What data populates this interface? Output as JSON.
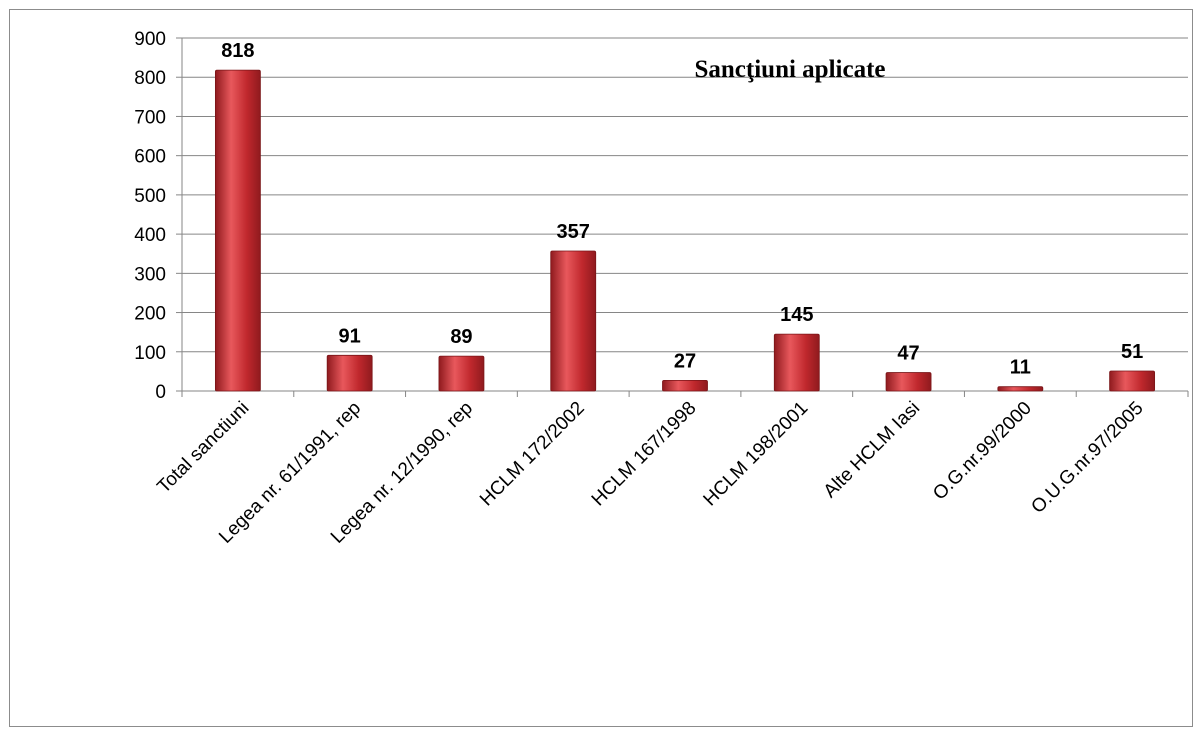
{
  "chart_data": {
    "type": "bar",
    "title": "Sancţiuni aplicate",
    "categories": [
      "Total sanctiuni",
      "Legea nr. 61/1991, rep",
      "Legea nr. 12/1990, rep",
      "HCLM 172/2002",
      "HCLM 167/1998",
      "HCLM 198/2001",
      "Alte HCLM Iasi",
      "O.G.nr.99/2000",
      "O.U.G.nr.97/2005"
    ],
    "values": [
      818,
      91,
      89,
      357,
      27,
      145,
      47,
      11,
      51
    ],
    "data_labels": [
      "818",
      "91",
      "89",
      "357",
      "27",
      "145",
      "47",
      "11",
      "51"
    ],
    "y_ticks": [
      "0",
      "100",
      "200",
      "300",
      "400",
      "500",
      "600",
      "700",
      "800",
      "900"
    ],
    "ylim": [
      0,
      900
    ],
    "xlabel": "",
    "ylabel": "",
    "grid": true,
    "legend": "none",
    "bar_color": "#c0282d",
    "bar_highlight_color": "#e8585c",
    "gridline_color": "#868686"
  }
}
